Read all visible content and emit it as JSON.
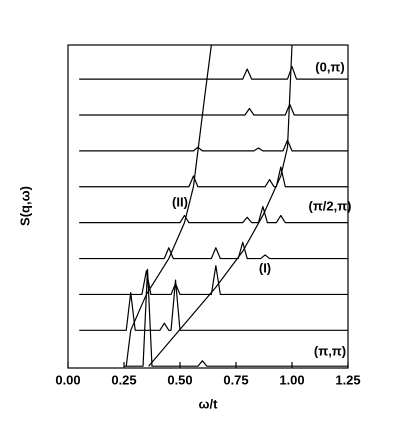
{
  "chart_data": {
    "type": "line",
    "xlabel": "ω/t",
    "ylabel": "S(q,ω)",
    "xlim": [
      0,
      1.25
    ],
    "xticks": [
      {
        "value": 0,
        "label": "0.00"
      },
      {
        "value": 0.25,
        "label": "0.25"
      },
      {
        "value": 0.5,
        "label": "0.50"
      },
      {
        "value": 0.75,
        "label": "0.75"
      },
      {
        "value": 1,
        "label": "1.00"
      },
      {
        "value": 1.25,
        "label": "1.25"
      }
    ],
    "ylim": [
      -0.05,
      8.95
    ],
    "annotations": [
      "(0,π)",
      "(π/2,π)",
      "(π,π)",
      "(I)",
      "(II)"
    ],
    "series": [
      {
        "color": "#000000",
        "x": [
          0.25,
          0.335,
          0.355,
          0.375,
          0.58,
          0.6,
          0.62,
          1.25
        ],
        "values": [
          0,
          0,
          2.7,
          0,
          0,
          0.15,
          0,
          0
        ]
      },
      {
        "color": "#000000",
        "x": [
          0.05,
          0.26,
          0.28,
          0.3,
          0.41,
          0.43,
          0.45,
          0.46,
          0.48,
          0.5,
          1.25
        ],
        "values": [
          1,
          1,
          2.05,
          1,
          1,
          1.2,
          1,
          1,
          2.4,
          1,
          1
        ]
      },
      {
        "color": "#000000",
        "x": [
          0.05,
          0.33,
          0.35,
          0.37,
          0.46,
          0.48,
          0.5,
          0.64,
          0.66,
          0.68,
          1.25
        ],
        "values": [
          2,
          2,
          2.66,
          2,
          2,
          2.3,
          2,
          2,
          2.8,
          2,
          2
        ]
      },
      {
        "color": "#000000",
        "x": [
          0.05,
          0.43,
          0.45,
          0.47,
          0.64,
          0.66,
          0.68,
          0.76,
          0.78,
          0.8,
          0.86,
          0.88,
          0.9,
          1.25
        ],
        "values": [
          3,
          3,
          3.3,
          3,
          3,
          3.3,
          3,
          3,
          3.45,
          3,
          3,
          3.1,
          3,
          3
        ]
      },
      {
        "color": "#000000",
        "x": [
          0.05,
          0.5,
          0.52,
          0.54,
          0.78,
          0.8,
          0.82,
          0.85,
          0.87,
          0.89,
          0.93,
          0.95,
          0.97,
          1.25
        ],
        "values": [
          4,
          4,
          4.2,
          4,
          4,
          4.15,
          4,
          4,
          4.45,
          4,
          4,
          4.2,
          4,
          4
        ]
      },
      {
        "color": "#000000",
        "x": [
          0.05,
          0.54,
          0.56,
          0.58,
          0.88,
          0.9,
          0.92,
          0.93,
          0.95,
          0.97,
          1.25
        ],
        "values": [
          5,
          5,
          5.3,
          5,
          5,
          5.2,
          5,
          5,
          5.55,
          5,
          5
        ]
      },
      {
        "color": "#000000",
        "x": [
          0.05,
          0.56,
          0.58,
          0.6,
          0.83,
          0.85,
          0.87,
          0.96,
          0.98,
          1.0,
          1.25
        ],
        "values": [
          6,
          6,
          6.1,
          6,
          6,
          6.08,
          6,
          6,
          6.3,
          6,
          6
        ]
      },
      {
        "color": "#000000",
        "x": [
          0.05,
          0.79,
          0.81,
          0.83,
          0.97,
          0.99,
          1.01,
          1.25
        ],
        "values": [
          7,
          7,
          7.18,
          7,
          7,
          7.3,
          7,
          7
        ]
      },
      {
        "color": "#000000",
        "x": [
          0.05,
          0.78,
          0.8,
          0.82,
          0.98,
          1.0,
          1.02,
          1.25
        ],
        "values": [
          8,
          8,
          8.28,
          8,
          8,
          8.35,
          8,
          8
        ]
      },
      {
        "color": "#000000",
        "x": [
          0.26,
          0.28,
          0.35,
          0.45,
          0.52,
          0.56,
          0.58,
          0.61,
          0.64
        ],
        "values": [
          0,
          1,
          2,
          3,
          4,
          5,
          6,
          7.5,
          8.95
        ]
      },
      {
        "color": "#000000",
        "x": [
          0.36,
          0.66,
          0.78,
          0.87,
          0.95,
          0.98,
          1.0
        ],
        "values": [
          0,
          2.2,
          3.2,
          4.2,
          5.3,
          6.1,
          8.95
        ]
      }
    ]
  }
}
